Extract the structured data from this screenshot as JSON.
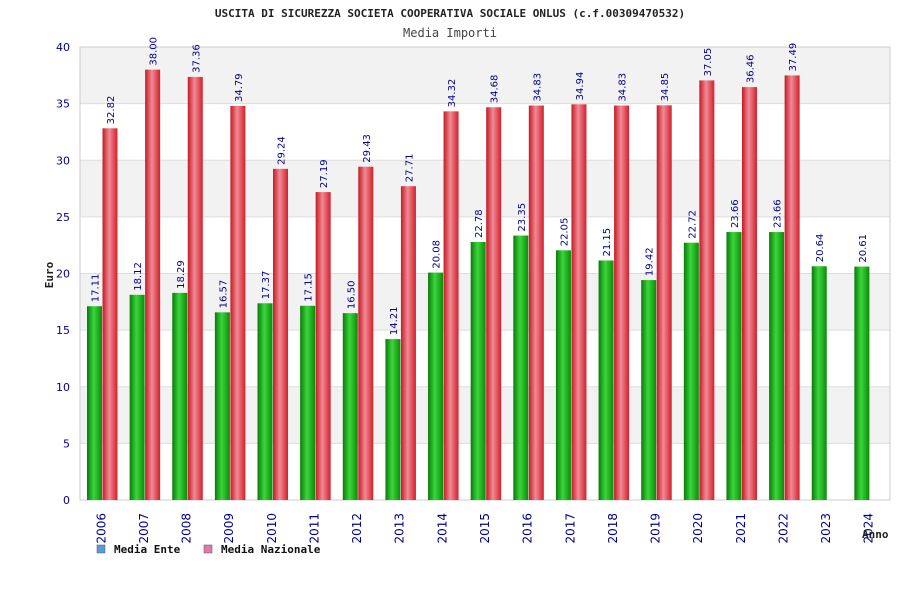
{
  "chart_data": {
    "type": "bar",
    "title": "USCITA DI SICUREZZA SOCIETA COOPERATIVA SOCIALE ONLUS (c.f.00309470532)",
    "subtitle": "Media Importi",
    "xlabel": "Anno",
    "ylabel": "Euro",
    "ylim": [
      0,
      40
    ],
    "yticks": [
      0,
      5,
      10,
      15,
      20,
      25,
      30,
      35,
      40
    ],
    "grid": true,
    "legend_position": "bottom-left",
    "categories": [
      "2006",
      "2007",
      "2008",
      "2009",
      "2010",
      "2011",
      "2012",
      "2013",
      "2014",
      "2015",
      "2016",
      "2017",
      "2018",
      "2019",
      "2020",
      "2021",
      "2022",
      "2023",
      "2024"
    ],
    "series": [
      {
        "name": "Media Ente",
        "legend_color": "#5b9bd5",
        "bar_color": "#22b322",
        "values": [
          17.11,
          18.12,
          18.29,
          16.57,
          17.37,
          17.15,
          16.5,
          14.21,
          20.08,
          22.78,
          23.35,
          22.05,
          21.15,
          19.42,
          22.72,
          23.66,
          23.66,
          20.64,
          20.61
        ],
        "labels": [
          "17.11",
          "18.12",
          "18.29",
          "16.57",
          "17.37",
          "17.15",
          "16.50",
          "14.21",
          "20.08",
          "22.78",
          "23.35",
          "22.05",
          "21.15",
          "19.42",
          "22.72",
          "23.66",
          "23.66",
          "20.64",
          "20.61"
        ]
      },
      {
        "name": "Media Nazionale",
        "legend_color": "#e07aa8",
        "bar_color": "#e8303a",
        "values": [
          32.82,
          38.0,
          37.36,
          34.79,
          29.24,
          27.19,
          29.43,
          27.71,
          34.32,
          34.68,
          34.83,
          34.94,
          34.83,
          34.85,
          37.05,
          36.46,
          37.49,
          null,
          null
        ],
        "labels": [
          "32.82",
          "38.00",
          "37.36",
          "34.79",
          "29.24",
          "27.19",
          "29.43",
          "27.71",
          "34.32",
          "34.68",
          "34.83",
          "34.94",
          "34.83",
          "34.85",
          "37.05",
          "36.46",
          "37.49",
          null,
          null
        ]
      }
    ]
  }
}
